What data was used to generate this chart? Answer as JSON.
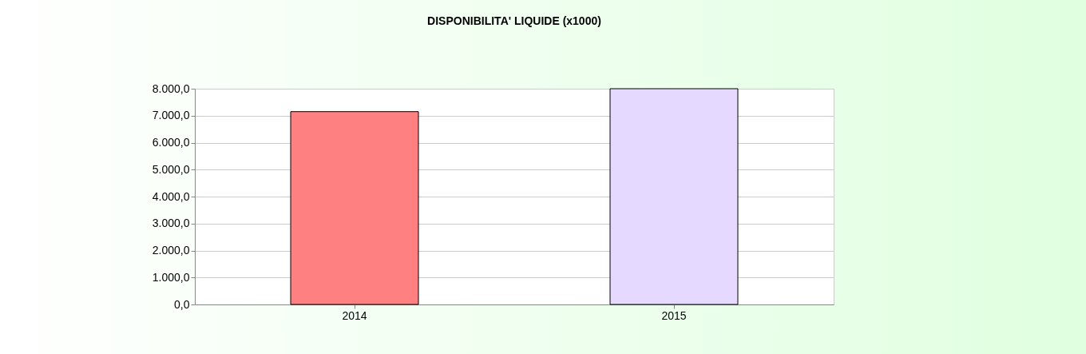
{
  "chart_data": {
    "type": "bar",
    "title": "DISPONIBILITA'  LIQUIDE (x1000)",
    "categories": [
      "2014",
      "2015"
    ],
    "values": [
      7150,
      8000
    ],
    "colors": [
      "#ff8080",
      "#e6d9ff"
    ],
    "ylim": [
      0,
      8000
    ],
    "yticks": [
      {
        "value": 0,
        "label": "0,0"
      },
      {
        "value": 1000,
        "label": "1.000,0"
      },
      {
        "value": 2000,
        "label": "2.000,0"
      },
      {
        "value": 3000,
        "label": "3.000,0"
      },
      {
        "value": 4000,
        "label": "4.000,0"
      },
      {
        "value": 5000,
        "label": "5.000,0"
      },
      {
        "value": 6000,
        "label": "6.000,0"
      },
      {
        "value": 7000,
        "label": "7.000,0"
      },
      {
        "value": 8000,
        "label": "8.000,0"
      }
    ],
    "grid": "y"
  }
}
